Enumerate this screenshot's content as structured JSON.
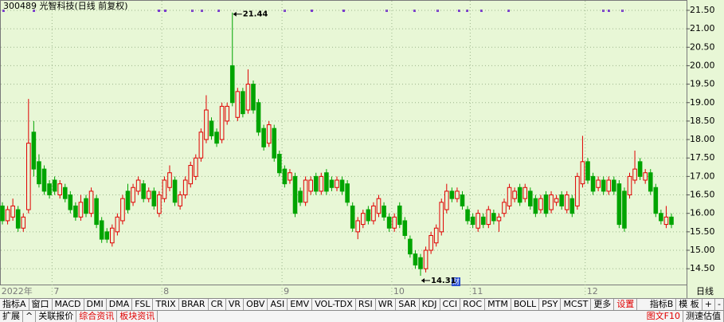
{
  "chart_data": {
    "type": "candlestick",
    "title": "300489 光智科技(日线 前复权)",
    "period": "日线",
    "financial_marker": "财",
    "categories": [
      "2022年",
      null,
      null,
      null,
      null,
      null,
      null,
      null,
      null,
      null,
      "7",
      null,
      null,
      null,
      null,
      null,
      null,
      null,
      null,
      null,
      null,
      null,
      null,
      null,
      null,
      null,
      null,
      null,
      null,
      null,
      null,
      "8",
      null,
      null,
      null,
      null,
      null,
      null,
      null,
      null,
      null,
      null,
      null,
      null,
      null,
      null,
      null,
      null,
      null,
      null,
      null,
      null,
      null,
      null,
      "9",
      null,
      null,
      null,
      null,
      null,
      null,
      null,
      null,
      null,
      null,
      null,
      null,
      null,
      null,
      null,
      null,
      null,
      null,
      null,
      null,
      "10",
      null,
      null,
      null,
      null,
      null,
      null,
      null,
      null,
      null,
      null,
      null,
      null,
      null,
      null,
      "11",
      null,
      null,
      null,
      null,
      null,
      null,
      null,
      null,
      null,
      null,
      null,
      null,
      null,
      null,
      null,
      null,
      null,
      null,
      null,
      null,
      null,
      "12",
      null,
      null,
      null,
      null,
      null,
      null,
      null,
      null,
      null,
      null,
      null,
      null,
      null,
      null,
      null,
      null
    ],
    "open": [
      16.2,
      15.8,
      15.9,
      16.1,
      15.6,
      16.1,
      18.2,
      17.4,
      17.2,
      16.8,
      16.9,
      16.5,
      16.7,
      16.5,
      16.2,
      15.9,
      16.4,
      16.0,
      16.4,
      15.8,
      15.5,
      15.2,
      15.5,
      15.8,
      16.6,
      16.3,
      16.6,
      16.8,
      16.4,
      16.6,
      16.0,
      16.4,
      16.7,
      16.9,
      16.2,
      16.5,
      16.8,
      17.0,
      17.5,
      18.0,
      18.5,
      18.2,
      18.0,
      18.5,
      20.0,
      18.6,
      19.3,
      18.8,
      19.5,
      19.0,
      18.3,
      17.9,
      18.3,
      17.6,
      17.2,
      16.9,
      17.0,
      16.6,
      16.3,
      16.6,
      17.0,
      16.6,
      17.1,
      16.9,
      16.7,
      16.9,
      16.8,
      16.2,
      15.5,
      15.7,
      16.1,
      15.8,
      16.0,
      16.2,
      15.9,
      15.6,
      16.2,
      15.8,
      15.3,
      14.9,
      14.8,
      14.5,
      15.0,
      15.2,
      15.5,
      16.1,
      16.6,
      16.4,
      16.5,
      16.1,
      15.9,
      15.6,
      15.9,
      15.7,
      16.0,
      15.8,
      16.0,
      16.2,
      16.4,
      16.7,
      16.4,
      16.6,
      16.4,
      16.1,
      16.5,
      16.1,
      16.3,
      16.5,
      16.1,
      16.4,
      16.2,
      16.8,
      17.4,
      17.0,
      16.7,
      16.9,
      16.6,
      16.9,
      16.8,
      16.6,
      16.5,
      16.9,
      17.4,
      16.9,
      17.1,
      16.7,
      16.0,
      15.7,
      15.9
    ],
    "high": [
      16.3,
      16.2,
      16.4,
      16.2,
      16.0,
      19.1,
      18.5,
      17.6,
      17.3,
      16.9,
      17.0,
      16.9,
      16.8,
      16.6,
      16.3,
      16.5,
      16.5,
      16.7,
      16.5,
      15.9,
      15.6,
      15.7,
      16.0,
      16.5,
      16.8,
      16.8,
      17.0,
      16.9,
      16.7,
      16.7,
      16.6,
      17.0,
      17.3,
      17.0,
      16.6,
      17.0,
      17.4,
      17.6,
      18.3,
      19.2,
      18.6,
      18.3,
      19.0,
      19.0,
      21.44,
      19.4,
      19.4,
      19.9,
      19.6,
      19.1,
      18.4,
      18.5,
      18.4,
      17.7,
      17.3,
      17.2,
      17.1,
      16.7,
      17.0,
      17.0,
      17.1,
      17.1,
      17.2,
      17.0,
      17.0,
      17.0,
      16.9,
      16.3,
      15.9,
      16.1,
      16.2,
      16.3,
      16.5,
      16.3,
      16.0,
      16.0,
      16.3,
      15.9,
      15.4,
      15.0,
      14.9,
      15.1,
      15.5,
      15.7,
      16.4,
      16.8,
      16.7,
      16.7,
      16.6,
      16.2,
      16.0,
      16.1,
      16.0,
      16.2,
      16.1,
      16.0,
      16.4,
      16.8,
      16.7,
      16.8,
      16.8,
      16.7,
      16.5,
      16.5,
      16.6,
      16.6,
      16.5,
      16.6,
      16.6,
      16.5,
      17.1,
      18.1,
      17.5,
      17.1,
      17.0,
      17.0,
      17.0,
      17.0,
      16.9,
      16.7,
      17.1,
      17.7,
      17.5,
      17.2,
      17.2,
      16.8,
      16.1,
      16.2,
      16.0
    ],
    "low": [
      15.7,
      15.7,
      15.8,
      15.5,
      15.5,
      16.0,
      17.0,
      16.7,
      16.5,
      16.4,
      16.5,
      16.4,
      16.3,
      16.0,
      15.8,
      15.8,
      15.9,
      15.9,
      15.6,
      15.2,
      15.2,
      15.1,
      15.4,
      15.7,
      16.0,
      16.2,
      16.5,
      16.3,
      16.3,
      16.1,
      15.9,
      16.3,
      16.6,
      16.2,
      16.1,
      16.4,
      16.7,
      16.9,
      17.4,
      17.9,
      18.0,
      17.8,
      17.9,
      18.4,
      18.9,
      18.5,
      18.6,
      18.7,
      18.7,
      18.1,
      17.7,
      17.8,
      17.4,
      17.0,
      16.7,
      16.8,
      15.9,
      16.2,
      16.2,
      16.5,
      16.5,
      16.5,
      16.5,
      16.6,
      16.6,
      16.5,
      16.2,
      15.5,
      15.3,
      15.6,
      15.7,
      15.7,
      15.9,
      15.8,
      15.5,
      15.5,
      15.6,
      15.3,
      14.8,
      14.5,
      14.31,
      14.4,
      14.9,
      15.1,
      15.4,
      16.0,
      16.3,
      16.3,
      16.1,
      15.7,
      15.6,
      15.5,
      15.6,
      15.6,
      15.7,
      15.5,
      15.9,
      16.1,
      16.3,
      16.2,
      16.3,
      16.1,
      15.9,
      16.0,
      15.9,
      16.0,
      16.2,
      16.1,
      16.0,
      15.9,
      16.1,
      16.7,
      16.8,
      16.5,
      16.6,
      16.5,
      16.5,
      16.5,
      15.6,
      15.5,
      16.4,
      16.8,
      16.9,
      16.8,
      16.5,
      15.9,
      15.7,
      15.6,
      15.6
    ],
    "close": [
      15.8,
      16.1,
      16.2,
      15.6,
      15.9,
      17.9,
      17.2,
      16.8,
      16.6,
      16.5,
      16.6,
      16.8,
      16.4,
      16.1,
      15.9,
      16.3,
      16.0,
      16.6,
      15.7,
      15.3,
      15.3,
      15.6,
      15.9,
      16.4,
      16.1,
      16.7,
      16.9,
      16.4,
      16.6,
      16.2,
      16.5,
      16.9,
      17.1,
      16.3,
      16.5,
      16.9,
      17.3,
      17.5,
      18.2,
      18.8,
      18.1,
      17.9,
      18.9,
      18.9,
      19.0,
      19.3,
      18.7,
      19.5,
      18.8,
      18.2,
      17.8,
      18.4,
      17.5,
      17.1,
      16.8,
      17.1,
      16.0,
      16.3,
      16.9,
      16.9,
      16.6,
      17.0,
      16.6,
      16.7,
      16.9,
      16.6,
      16.3,
      15.6,
      15.8,
      16.0,
      15.8,
      16.2,
      16.4,
      15.9,
      15.6,
      15.9,
      15.7,
      15.4,
      14.9,
      14.6,
      14.5,
      15.0,
      15.4,
      15.6,
      16.3,
      16.6,
      16.4,
      16.6,
      16.2,
      15.8,
      15.7,
      16.0,
      15.7,
      16.1,
      15.8,
      15.9,
      16.3,
      16.7,
      16.6,
      16.3,
      16.7,
      16.2,
      16.0,
      16.4,
      16.0,
      16.5,
      16.4,
      16.2,
      16.5,
      16.0,
      17.0,
      17.4,
      16.9,
      16.6,
      16.9,
      16.6,
      16.9,
      16.6,
      15.7,
      15.6,
      17.0,
      17.2,
      17.0,
      17.1,
      16.6,
      16.0,
      15.8,
      15.9,
      15.7
    ],
    "up_color": "#e00000",
    "down_color": "#00a400",
    "annotations": [
      21.44,
      14.31
    ],
    "ylim": [
      14.05,
      21.78
    ],
    "yticks": [
      {
        "value": 14.5,
        "label": "14.50"
      },
      {
        "value": 15,
        "label": "15.00"
      },
      {
        "value": 15.5,
        "label": "15.50"
      },
      {
        "value": 16,
        "label": "16.00"
      },
      {
        "value": 16.5,
        "label": "16.50"
      },
      {
        "value": 17,
        "label": "17.00"
      },
      {
        "value": 17.5,
        "label": "17.50"
      },
      {
        "value": 18,
        "label": "18.00"
      },
      {
        "value": 18.5,
        "label": "18.50"
      },
      {
        "value": 19,
        "label": "19.00"
      },
      {
        "value": 19.5,
        "label": "19.50"
      },
      {
        "value": 20,
        "label": "20.00"
      },
      {
        "value": 20.5,
        "label": "20.50"
      },
      {
        "value": 21,
        "label": "21.00"
      },
      {
        "value": 21.5,
        "label": "21.50"
      }
    ],
    "grid": true
  },
  "toolbar": {
    "row1": [
      "指标A",
      "窗口",
      "MACD",
      "DMI",
      "DMA",
      "FSL",
      "TRIX",
      "BRAR",
      "CR",
      "VR",
      "OBV",
      "ASI",
      "EMV",
      "VOL-TDX",
      "RSI",
      "WR",
      "SAR",
      "KDJ",
      "CCI",
      "ROC",
      "MTM",
      "BOLL",
      "PSY",
      "MCST",
      "更多",
      "设置",
      "指标B",
      "模 板",
      "+",
      "-"
    ],
    "row2": [
      "扩展",
      "^",
      "关联报价",
      "综合资讯",
      "板块资讯",
      "图文F10",
      "测速估值"
    ]
  }
}
